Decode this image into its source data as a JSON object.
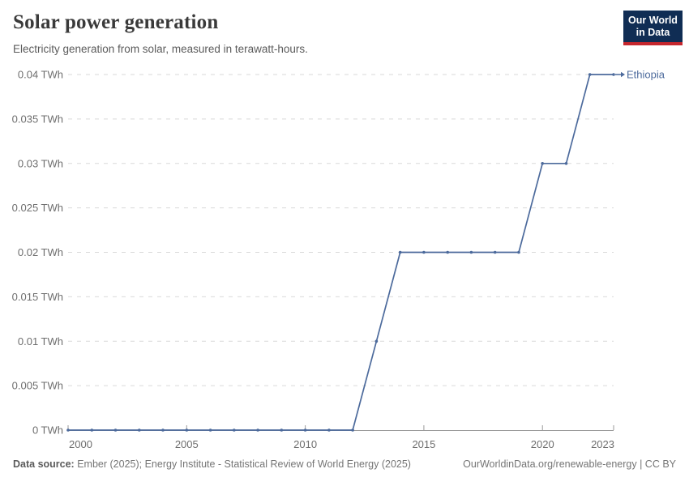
{
  "header": {
    "logo": {
      "line1": "Our World",
      "line2": "in Data"
    }
  },
  "chart_data": {
    "type": "line",
    "title": "Solar power generation",
    "subtitle": "Electricity generation from solar, measured in terawatt-hours.",
    "x": [
      2000,
      2001,
      2002,
      2003,
      2004,
      2005,
      2006,
      2007,
      2008,
      2009,
      2010,
      2011,
      2012,
      2013,
      2014,
      2015,
      2016,
      2017,
      2018,
      2019,
      2020,
      2021,
      2022,
      2023
    ],
    "series": [
      {
        "name": "Ethiopia",
        "values": [
          0,
          0,
          0,
          0,
          0,
          0,
          0,
          0,
          0,
          0,
          0,
          0,
          0,
          0.01,
          0.02,
          0.02,
          0.02,
          0.02,
          0.02,
          0.02,
          0.03,
          0.03,
          0.04,
          0.04
        ]
      }
    ],
    "x_ticks": [
      2000,
      2005,
      2010,
      2015,
      2020,
      2023
    ],
    "y_ticks": [
      0,
      0.005,
      0.01,
      0.015,
      0.02,
      0.025,
      0.03,
      0.035,
      0.04
    ],
    "y_unit": "TWh",
    "xlim": [
      2000,
      2023
    ],
    "ylim": [
      0,
      0.04
    ],
    "grid": "horizontal-dashed",
    "legend_position": "end-of-line-label",
    "end_label": "Ethiopia"
  },
  "footer": {
    "source_prefix": "Data source:",
    "source_text": "Ember (2025); Energy Institute - Statistical Review of World Energy (2025)",
    "credit": "OurWorldinData.org/renewable-energy | CC BY"
  },
  "colors": {
    "line": "#4c6a9c",
    "gridline": "#d9d9d9",
    "axis_line": "#9a9a9a",
    "axis_text": "#6e6e6e",
    "title_text": "#3a3a3a",
    "subtitle_text": "#5b5b5b",
    "footer_text": "#757575",
    "logo_bg": "#102d54",
    "logo_stripe": "#c5262d"
  }
}
